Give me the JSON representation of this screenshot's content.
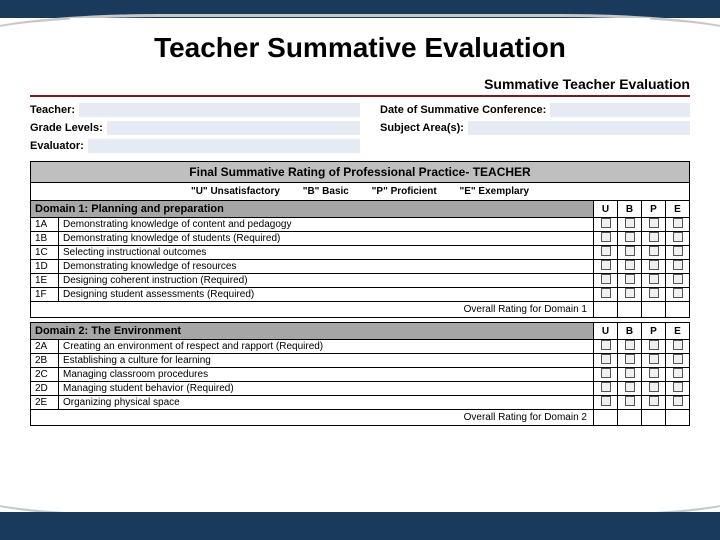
{
  "page": {
    "title": "Teacher Summative Evaluation",
    "section_heading": "Summative Teacher Evaluation",
    "bg_color": "#ffffff",
    "border_color": "#1a3a5c",
    "accent_color": "#7a1a1a",
    "field_bg": "#e6eaf2",
    "gray_header": "#bfbfbf",
    "gray_domain": "#a6a6a6"
  },
  "info": {
    "teacher_label": "Teacher:",
    "date_label": "Date of Summative Conference:",
    "grade_label": "Grade Levels:",
    "subject_label": "Subject Area(s):",
    "evaluator_label": "Evaluator:"
  },
  "rating": {
    "header": "Final Summative Rating of Professional Practice- TEACHER",
    "legend_u": "\"U\" Unsatisfactory",
    "legend_b": "\"B\" Basic",
    "legend_p": "\"P\" Proficient",
    "legend_e": "\"E\" Exemplary",
    "col_u": "U",
    "col_b": "B",
    "col_p": "P",
    "col_e": "E"
  },
  "domain1": {
    "title": "Domain 1: Planning and preparation",
    "overall": "Overall Rating for Domain 1",
    "rows": [
      {
        "code": "1A",
        "label": "Demonstrating knowledge of content and pedagogy"
      },
      {
        "code": "1B",
        "label": "Demonstrating knowledge of students (Required)"
      },
      {
        "code": "1C",
        "label": "Selecting instructional outcomes"
      },
      {
        "code": "1D",
        "label": "Demonstrating knowledge of resources"
      },
      {
        "code": "1E",
        "label": "Designing coherent instruction (Required)"
      },
      {
        "code": "1F",
        "label": "Designing student assessments (Required)"
      }
    ]
  },
  "domain2": {
    "title": "Domain 2: The Environment",
    "overall": "Overall Rating for Domain 2",
    "rows": [
      {
        "code": "2A",
        "label": "Creating an environment of respect and rapport (Required)"
      },
      {
        "code": "2B",
        "label": "Establishing a culture for learning"
      },
      {
        "code": "2C",
        "label": "Managing classroom procedures"
      },
      {
        "code": "2D",
        "label": "Managing student behavior (Required)"
      },
      {
        "code": "2E",
        "label": "Organizing physical space"
      }
    ]
  }
}
